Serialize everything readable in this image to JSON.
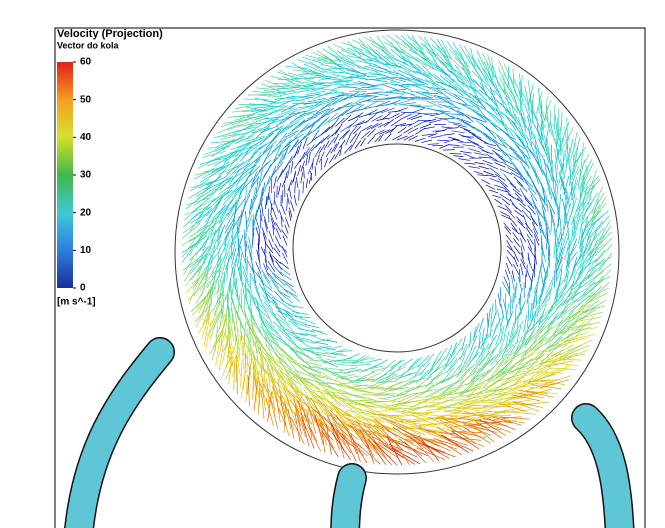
{
  "legend": {
    "title": "Velocity (Projection)",
    "subtitle": "Vector do kola",
    "ticks": [
      0,
      10,
      20,
      30,
      40,
      50,
      60
    ],
    "unit": "[m s^-1]"
  }
}
